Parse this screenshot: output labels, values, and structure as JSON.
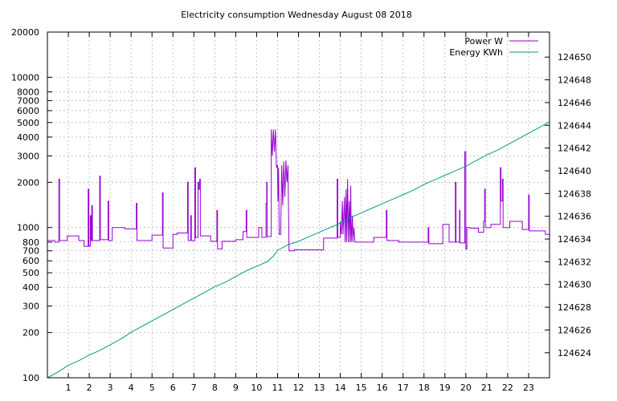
{
  "chart_data": {
    "type": "line",
    "title": "Electricity consumption Wednesday August 08 2018",
    "xlabel": "",
    "ylabel": "",
    "xlim": [
      0,
      24
    ],
    "x_ticks": [
      "1",
      "2",
      "3",
      "4",
      "5",
      "6",
      "7",
      "8",
      "9",
      "10",
      "11",
      "12",
      "13",
      "14",
      "15",
      "16",
      "17",
      "18",
      "19",
      "20",
      "21",
      "22",
      "23"
    ],
    "y_scale": "log",
    "ylim": [
      100,
      20000
    ],
    "y_ticks": [
      "100",
      "200",
      "300",
      "400",
      "500",
      "600",
      "700",
      "800",
      "1000",
      "2000",
      "3000",
      "4000",
      "5000",
      "6000",
      "7000",
      "8000",
      "10000",
      "20000"
    ],
    "y2_lim": [
      124621.8,
      124652.2
    ],
    "y2_ticks": [
      "124624",
      "124626",
      "124628",
      "124630",
      "124632",
      "124634",
      "124636",
      "124638",
      "124640",
      "124642",
      "124644",
      "124646",
      "124648",
      "124650"
    ],
    "grid": true,
    "legend_position": "top-right",
    "legend": [
      "Power W",
      "Energy KWh"
    ],
    "series": [
      {
        "name": "Power W",
        "axis": "left",
        "color": "#9400d3",
        "points": [
          [
            0,
            820
          ],
          [
            0.35,
            820
          ],
          [
            0.35,
            800
          ],
          [
            0.55,
            800
          ],
          [
            0.55,
            2100
          ],
          [
            0.58,
            2100
          ],
          [
            0.58,
            820
          ],
          [
            0.95,
            820
          ],
          [
            0.95,
            880
          ],
          [
            1.5,
            880
          ],
          [
            1.5,
            820
          ],
          [
            1.75,
            820
          ],
          [
            1.75,
            750
          ],
          [
            1.95,
            750
          ],
          [
            1.95,
            1800
          ],
          [
            1.98,
            1800
          ],
          [
            1.98,
            750
          ],
          [
            2.05,
            750
          ],
          [
            2.05,
            1200
          ],
          [
            2.08,
            1200
          ],
          [
            2.08,
            820
          ],
          [
            2.12,
            820
          ],
          [
            2.12,
            1400
          ],
          [
            2.15,
            1400
          ],
          [
            2.15,
            820
          ],
          [
            2.5,
            820
          ],
          [
            2.5,
            2200
          ],
          [
            2.53,
            2200
          ],
          [
            2.53,
            830
          ],
          [
            2.9,
            830
          ],
          [
            2.9,
            1500
          ],
          [
            2.93,
            1500
          ],
          [
            2.93,
            820
          ],
          [
            3.1,
            820
          ],
          [
            3.1,
            1000
          ],
          [
            3.7,
            1000
          ],
          [
            3.7,
            980
          ],
          [
            4.25,
            980
          ],
          [
            4.25,
            1450
          ],
          [
            4.28,
            1450
          ],
          [
            4.28,
            820
          ],
          [
            5.0,
            820
          ],
          [
            5.0,
            890
          ],
          [
            5.5,
            890
          ],
          [
            5.5,
            1700
          ],
          [
            5.53,
            1700
          ],
          [
            5.53,
            730
          ],
          [
            6.0,
            730
          ],
          [
            6.0,
            900
          ],
          [
            6.2,
            900
          ],
          [
            6.2,
            920
          ],
          [
            6.7,
            920
          ],
          [
            6.7,
            2000
          ],
          [
            6.73,
            2000
          ],
          [
            6.73,
            820
          ],
          [
            6.85,
            820
          ],
          [
            6.85,
            1200
          ],
          [
            6.88,
            1200
          ],
          [
            6.88,
            820
          ],
          [
            7.05,
            820
          ],
          [
            7.05,
            2500
          ],
          [
            7.08,
            2500
          ],
          [
            7.08,
            860
          ],
          [
            7.2,
            860
          ],
          [
            7.2,
            2000
          ],
          [
            7.23,
            2000
          ],
          [
            7.23,
            1800
          ],
          [
            7.28,
            1800
          ],
          [
            7.28,
            2100
          ],
          [
            7.31,
            2100
          ],
          [
            7.31,
            880
          ],
          [
            7.8,
            880
          ],
          [
            7.8,
            810
          ],
          [
            8.1,
            810
          ],
          [
            8.1,
            1300
          ],
          [
            8.13,
            1300
          ],
          [
            8.13,
            720
          ],
          [
            8.35,
            720
          ],
          [
            8.35,
            810
          ],
          [
            9.0,
            810
          ],
          [
            9.0,
            830
          ],
          [
            9.35,
            830
          ],
          [
            9.35,
            940
          ],
          [
            9.5,
            940
          ],
          [
            9.5,
            1300
          ],
          [
            9.53,
            1300
          ],
          [
            9.53,
            860
          ],
          [
            10.1,
            860
          ],
          [
            10.1,
            1000
          ],
          [
            10.25,
            1000
          ],
          [
            10.25,
            860
          ],
          [
            10.45,
            860
          ],
          [
            10.45,
            1450
          ],
          [
            10.48,
            1450
          ],
          [
            10.48,
            2000
          ],
          [
            10.5,
            2000
          ],
          [
            10.5,
            870
          ],
          [
            10.7,
            870
          ],
          [
            10.7,
            4500
          ],
          [
            10.75,
            3000
          ],
          [
            10.8,
            4500
          ],
          [
            10.85,
            3200
          ],
          [
            10.9,
            4500
          ],
          [
            10.95,
            2500
          ],
          [
            11.0,
            2600
          ],
          [
            11.02,
            1500
          ],
          [
            11.05,
            2500
          ],
          [
            11.08,
            900
          ],
          [
            11.15,
            900
          ],
          [
            11.2,
            2600
          ],
          [
            11.25,
            1400
          ],
          [
            11.3,
            2750
          ],
          [
            11.35,
            1600
          ],
          [
            11.4,
            2800
          ],
          [
            11.45,
            2000
          ],
          [
            11.5,
            2600
          ],
          [
            11.55,
            700
          ],
          [
            11.8,
            700
          ],
          [
            11.8,
            710
          ],
          [
            12.2,
            710
          ],
          [
            12.2,
            710
          ],
          [
            13.2,
            710
          ],
          [
            13.2,
            850
          ],
          [
            13.85,
            850
          ],
          [
            13.85,
            2100
          ],
          [
            13.88,
            2100
          ],
          [
            13.88,
            860
          ],
          [
            14.0,
            860
          ],
          [
            14.0,
            1100
          ],
          [
            14.05,
            900
          ],
          [
            14.1,
            1500
          ],
          [
            14.13,
            900
          ],
          [
            14.2,
            1600
          ],
          [
            14.23,
            800
          ],
          [
            14.28,
            1800
          ],
          [
            14.3,
            800
          ],
          [
            14.35,
            2100
          ],
          [
            14.38,
            800
          ],
          [
            14.43,
            1500
          ],
          [
            14.46,
            800
          ],
          [
            14.5,
            1900
          ],
          [
            14.52,
            800
          ],
          [
            14.58,
            1200
          ],
          [
            14.6,
            800
          ],
          [
            14.65,
            1000
          ],
          [
            14.7,
            800
          ],
          [
            15.0,
            800
          ],
          [
            15.6,
            800
          ],
          [
            15.6,
            860
          ],
          [
            16.2,
            860
          ],
          [
            16.2,
            1300
          ],
          [
            16.23,
            1300
          ],
          [
            16.23,
            820
          ],
          [
            16.8,
            820
          ],
          [
            16.8,
            800
          ],
          [
            18.2,
            800
          ],
          [
            18.2,
            1000
          ],
          [
            18.23,
            1000
          ],
          [
            18.23,
            780
          ],
          [
            18.9,
            780
          ],
          [
            18.9,
            1050
          ],
          [
            19.2,
            1050
          ],
          [
            19.2,
            800
          ],
          [
            19.5,
            800
          ],
          [
            19.5,
            2000
          ],
          [
            19.53,
            2000
          ],
          [
            19.53,
            800
          ],
          [
            19.7,
            800
          ],
          [
            19.7,
            1300
          ],
          [
            19.72,
            1300
          ],
          [
            19.72,
            790
          ],
          [
            19.95,
            790
          ],
          [
            19.95,
            3200
          ],
          [
            20.0,
            3200
          ],
          [
            20.0,
            720
          ],
          [
            20.05,
            720
          ],
          [
            20.05,
            1000
          ],
          [
            20.2,
            1000
          ],
          [
            20.2,
            990
          ],
          [
            20.6,
            990
          ],
          [
            20.6,
            930
          ],
          [
            20.85,
            930
          ],
          [
            20.85,
            1100
          ],
          [
            20.9,
            1100
          ],
          [
            20.9,
            1800
          ],
          [
            20.93,
            1800
          ],
          [
            20.93,
            1000
          ],
          [
            21.2,
            1000
          ],
          [
            21.2,
            1050
          ],
          [
            21.65,
            1050
          ],
          [
            21.65,
            2500
          ],
          [
            21.68,
            2500
          ],
          [
            21.68,
            1500
          ],
          [
            21.75,
            1500
          ],
          [
            21.75,
            2100
          ],
          [
            21.78,
            2100
          ],
          [
            21.78,
            1000
          ],
          [
            22.1,
            1000
          ],
          [
            22.1,
            1100
          ],
          [
            22.7,
            1100
          ],
          [
            22.7,
            970
          ],
          [
            23.0,
            970
          ],
          [
            23.0,
            1650
          ],
          [
            23.03,
            1650
          ],
          [
            23.03,
            950
          ],
          [
            23.8,
            950
          ],
          [
            23.8,
            900
          ],
          [
            24.0,
            900
          ]
        ]
      },
      {
        "name": "Energy KWh",
        "axis": "right",
        "color": "#009e73",
        "points": [
          [
            0,
            124621.8
          ],
          [
            0.5,
            124622.3
          ],
          [
            1.0,
            124622.9
          ],
          [
            1.5,
            124623.3
          ],
          [
            2.0,
            124623.8
          ],
          [
            2.5,
            124624.2
          ],
          [
            3.0,
            124624.7
          ],
          [
            3.5,
            124625.2
          ],
          [
            4.0,
            124625.8
          ],
          [
            4.5,
            124626.3
          ],
          [
            5.0,
            124626.8
          ],
          [
            5.5,
            124627.3
          ],
          [
            6.0,
            124627.8
          ],
          [
            6.5,
            124628.3
          ],
          [
            7.0,
            124628.8
          ],
          [
            7.5,
            124629.3
          ],
          [
            8.0,
            124629.8
          ],
          [
            8.5,
            124630.2
          ],
          [
            9.0,
            124630.7
          ],
          [
            9.5,
            124631.2
          ],
          [
            10.0,
            124631.6
          ],
          [
            10.5,
            124632.0
          ],
          [
            10.8,
            124632.5
          ],
          [
            11.0,
            124633.0
          ],
          [
            11.5,
            124633.5
          ],
          [
            12.0,
            124633.8
          ],
          [
            12.5,
            124634.2
          ],
          [
            13.0,
            124634.6
          ],
          [
            13.5,
            124635.0
          ],
          [
            14.0,
            124635.4
          ],
          [
            14.5,
            124635.9
          ],
          [
            15.0,
            124636.3
          ],
          [
            15.5,
            124636.7
          ],
          [
            16.0,
            124637.1
          ],
          [
            16.5,
            124637.5
          ],
          [
            17.0,
            124637.9
          ],
          [
            17.5,
            124638.3
          ],
          [
            18.0,
            124638.8
          ],
          [
            18.5,
            124639.2
          ],
          [
            19.0,
            124639.6
          ],
          [
            19.5,
            124640.0
          ],
          [
            20.0,
            124640.4
          ],
          [
            20.5,
            124640.9
          ],
          [
            21.0,
            124641.4
          ],
          [
            21.5,
            124641.8
          ],
          [
            22.0,
            124642.3
          ],
          [
            22.5,
            124642.8
          ],
          [
            23.0,
            124643.3
          ],
          [
            23.5,
            124643.8
          ],
          [
            24.0,
            124644.3
          ]
        ]
      }
    ]
  }
}
